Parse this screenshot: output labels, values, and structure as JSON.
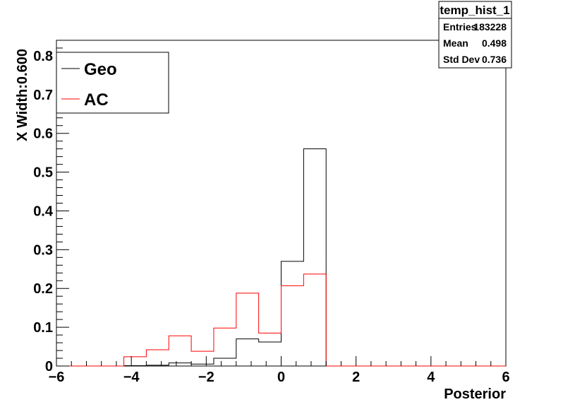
{
  "chart_data": {
    "type": "histogram",
    "xlabel": "Posterior",
    "ylabel": "X Width:0.600",
    "xlim": [
      -6,
      6
    ],
    "ylim": [
      0,
      0.84
    ],
    "x_ticks": [
      -6,
      -4,
      -2,
      0,
      2,
      4,
      6
    ],
    "x_tick_labels": [
      "−6",
      "−4",
      "−2",
      "0",
      "2",
      "4",
      "6"
    ],
    "y_ticks": [
      0,
      0.1,
      0.2,
      0.3,
      0.4,
      0.5,
      0.6,
      0.7,
      0.8
    ],
    "y_tick_labels": [
      "0",
      "0.1",
      "0.2",
      "0.3",
      "0.4",
      "0.5",
      "0.6",
      "0.7",
      "0.8"
    ],
    "bin_width": 0.6,
    "bin_edges": [
      -6.0,
      -5.4,
      -4.8,
      -4.2,
      -3.6,
      -3.0,
      -2.4,
      -1.8,
      -1.2,
      -0.6,
      0.0,
      0.6,
      1.2,
      1.8,
      2.4,
      3.0,
      3.6,
      4.2,
      4.8,
      5.4,
      6.0
    ],
    "series": [
      {
        "name": "Geo",
        "color": "#000000",
        "values": [
          0,
          0,
          0,
          0.001,
          0.002,
          0.008,
          0.005,
          0.02,
          0.07,
          0.062,
          0.27,
          0.56,
          0,
          0,
          0,
          0,
          0,
          0,
          0,
          0
        ]
      },
      {
        "name": "AC",
        "color": "#ff0000",
        "values": [
          0,
          0,
          0,
          0.024,
          0.042,
          0.078,
          0.038,
          0.098,
          0.188,
          0.085,
          0.207,
          0.237,
          0,
          0,
          0,
          0,
          0,
          0,
          0,
          0
        ]
      }
    ],
    "legend_position": "top-left",
    "stats_box": {
      "title": "temp_hist_1",
      "rows": [
        {
          "label": "Entries",
          "value": "183228"
        },
        {
          "label": "Mean",
          "value": "0.498"
        },
        {
          "label": "Std Dev",
          "value": "0.736"
        }
      ]
    }
  }
}
